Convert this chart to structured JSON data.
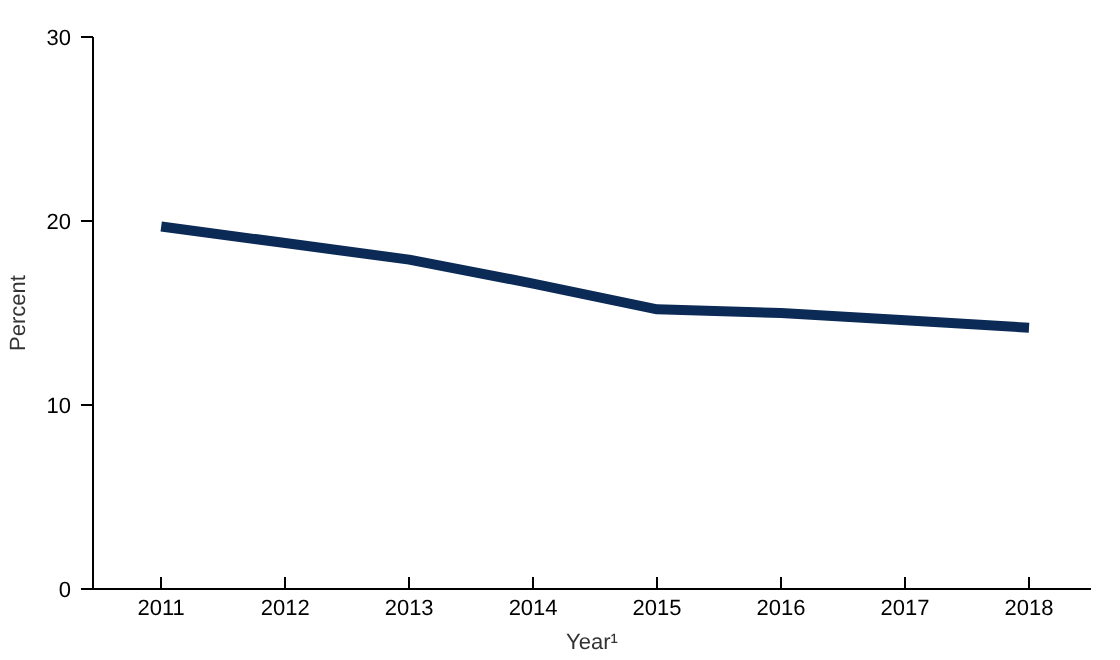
{
  "chart_data": {
    "type": "line",
    "xlabel": "Year¹",
    "ylabel": "Percent",
    "categories": [
      "2011",
      "2012",
      "2013",
      "2014",
      "2015",
      "2016",
      "2017",
      "2018"
    ],
    "series": [
      {
        "color": "#0b2a56",
        "values": [
          19.7,
          18.8,
          17.9,
          16.6,
          15.2,
          15.0,
          14.6,
          14.2
        ]
      }
    ],
    "ylim": [
      0,
      30
    ],
    "yticks": [
      0,
      10,
      20,
      30
    ],
    "grid": false,
    "marker": "none",
    "line_style": "solid"
  }
}
